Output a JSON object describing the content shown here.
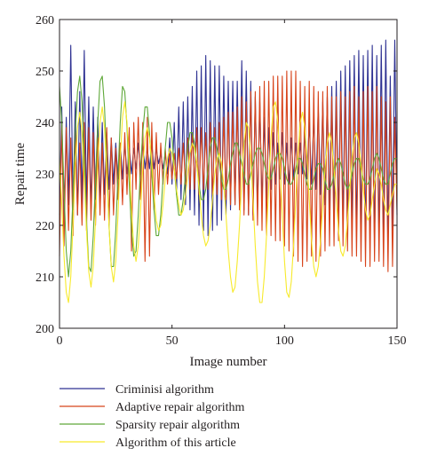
{
  "chart_data": {
    "type": "line",
    "title": "",
    "xlabel": "Image number",
    "ylabel": "Repair time",
    "xlim": [
      0,
      150
    ],
    "ylim": [
      200,
      260
    ],
    "xticks": [
      0,
      50,
      100,
      150
    ],
    "yticks": [
      200,
      210,
      220,
      230,
      240,
      250,
      260
    ],
    "grid": false,
    "legend_position": "bottom",
    "x": [
      0,
      1,
      2,
      3,
      4,
      5,
      6,
      7,
      8,
      9,
      10,
      11,
      12,
      13,
      14,
      15,
      16,
      17,
      18,
      19,
      20,
      21,
      22,
      23,
      24,
      25,
      26,
      27,
      28,
      29,
      30,
      31,
      32,
      33,
      34,
      35,
      36,
      37,
      38,
      39,
      40,
      41,
      42,
      43,
      44,
      45,
      46,
      47,
      48,
      49,
      50,
      51,
      52,
      53,
      54,
      55,
      56,
      57,
      58,
      59,
      60,
      61,
      62,
      63,
      64,
      65,
      66,
      67,
      68,
      69,
      70,
      71,
      72,
      73,
      74,
      75,
      76,
      77,
      78,
      79,
      80,
      81,
      82,
      83,
      84,
      85,
      86,
      87,
      88,
      89,
      90,
      91,
      92,
      93,
      94,
      95,
      96,
      97,
      98,
      99,
      100,
      101,
      102,
      103,
      104,
      105,
      106,
      107,
      108,
      109,
      110,
      111,
      112,
      113,
      114,
      115,
      116,
      117,
      118,
      119,
      120,
      121,
      122,
      123,
      124,
      125,
      126,
      127,
      128,
      129,
      130,
      131,
      132,
      133,
      134,
      135,
      136,
      137,
      138,
      139,
      140,
      141,
      142,
      143,
      144,
      145,
      146,
      147,
      148,
      149,
      150
    ],
    "series": [
      {
        "name": "Criminisi algorithm",
        "color": "#2e3192",
        "values": [
          222,
          243,
          219,
          241,
          224,
          255,
          223,
          244,
          222,
          246,
          224,
          254,
          224,
          245,
          223,
          243,
          225,
          241,
          224,
          240,
          226,
          238,
          227,
          237,
          228,
          236,
          229,
          236,
          229,
          236,
          230,
          235,
          230,
          235,
          231,
          236,
          230,
          236,
          231,
          235,
          231,
          236,
          231,
          235,
          232,
          234,
          231,
          234,
          230,
          237,
          228,
          240,
          226,
          243,
          225,
          244,
          224,
          245,
          223,
          247,
          222,
          250,
          220,
          251,
          219,
          253,
          218,
          252,
          219,
          251,
          220,
          251,
          221,
          249,
          222,
          248,
          223,
          248,
          224,
          248,
          224,
          252,
          223,
          250,
          222,
          248,
          222,
          245,
          223,
          244,
          224,
          241,
          225,
          239,
          227,
          238,
          228,
          236,
          229,
          238,
          228,
          236,
          228,
          237,
          229,
          236,
          230,
          236,
          230,
          238,
          229,
          240,
          228,
          241,
          227,
          243,
          226,
          244,
          224,
          245,
          223,
          247,
          222,
          248,
          221,
          250,
          220,
          251,
          219,
          252,
          219,
          253,
          218,
          254,
          218,
          253,
          217,
          254,
          217,
          255,
          216,
          253,
          217,
          255,
          216,
          256,
          218,
          249,
          219,
          256,
          222
        ]
      },
      {
        "name": "Adaptive repair algorithm",
        "color": "#d7431a",
        "values": [
          214,
          240,
          216,
          239,
          219,
          237,
          218,
          238,
          222,
          236,
          220,
          240,
          219,
          239,
          221,
          238,
          220,
          237,
          222,
          236,
          221,
          239,
          220,
          237,
          222,
          235,
          225,
          236,
          224,
          238,
          226,
          239,
          215,
          240,
          227,
          241,
          225,
          240,
          213,
          241,
          214,
          240,
          223,
          238,
          226,
          236,
          228,
          235,
          228,
          234,
          229,
          234,
          229,
          235,
          228,
          236,
          228,
          237,
          227,
          238,
          227,
          239,
          226,
          239,
          227,
          238,
          227,
          240,
          226,
          239,
          226,
          240,
          225,
          241,
          225,
          242,
          224,
          242,
          224,
          243,
          223,
          245,
          222,
          244,
          222,
          246,
          221,
          246,
          220,
          247,
          219,
          248,
          218,
          248,
          218,
          249,
          217,
          249,
          217,
          249,
          216,
          250,
          215,
          250,
          214,
          250,
          213,
          248,
          212,
          247,
          213,
          248,
          214,
          247,
          213,
          246,
          214,
          246,
          215,
          247,
          216,
          245,
          216,
          245,
          217,
          246,
          216,
          245,
          215,
          246,
          214,
          247,
          214,
          245,
          213,
          246,
          212,
          247,
          212,
          246,
          213,
          247,
          213,
          245,
          212,
          244,
          211,
          245,
          212,
          241,
          223
        ]
      },
      {
        "name": "Sparsity repair algorithm",
        "color": "#5fa839",
        "values": [
          247,
          240,
          227,
          215,
          210,
          215,
          226,
          238,
          246,
          249,
          244,
          233,
          221,
          212,
          211,
          218,
          229,
          240,
          248,
          249,
          243,
          232,
          220,
          212,
          212,
          219,
          230,
          240,
          247,
          246,
          239,
          228,
          219,
          214,
          215,
          222,
          231,
          238,
          243,
          243,
          238,
          230,
          223,
          218,
          218,
          222,
          229,
          235,
          240,
          240,
          237,
          231,
          226,
          222,
          222,
          225,
          230,
          235,
          238,
          238,
          236,
          232,
          228,
          225,
          225,
          227,
          231,
          235,
          237,
          237,
          235,
          232,
          229,
          227,
          227,
          229,
          232,
          234,
          236,
          236,
          234,
          232,
          230,
          228,
          228,
          230,
          232,
          234,
          235,
          235,
          234,
          232,
          230,
          229,
          229,
          231,
          233,
          234,
          234,
          233,
          231,
          229,
          228,
          228,
          229,
          231,
          233,
          233,
          232,
          230,
          228,
          227,
          227,
          229,
          231,
          232,
          232,
          231,
          229,
          227,
          227,
          228,
          230,
          232,
          233,
          232,
          230,
          228,
          227,
          228,
          230,
          232,
          233,
          233,
          231,
          229,
          228,
          228,
          229,
          231,
          233,
          234,
          233,
          231,
          229,
          228,
          228,
          230,
          232,
          233,
          233
        ]
      },
      {
        "name": "Algorithm of this article",
        "color": "#f7ea2b",
        "values": [
          233,
          224,
          214,
          207,
          205,
          210,
          220,
          231,
          239,
          242,
          238,
          229,
          219,
          211,
          208,
          212,
          221,
          232,
          240,
          243,
          239,
          230,
          220,
          212,
          209,
          213,
          222,
          233,
          241,
          244,
          240,
          232,
          223,
          216,
          213,
          216,
          223,
          231,
          237,
          239,
          237,
          232,
          226,
          221,
          219,
          220,
          224,
          229,
          233,
          235,
          234,
          231,
          227,
          224,
          222,
          223,
          226,
          230,
          234,
          236,
          235,
          232,
          227,
          222,
          218,
          216,
          217,
          220,
          225,
          230,
          233,
          234,
          232,
          228,
          222,
          215,
          210,
          207,
          208,
          213,
          220,
          229,
          236,
          240,
          239,
          233,
          225,
          216,
          209,
          205,
          205,
          210,
          218,
          228,
          237,
          243,
          244,
          240,
          232,
          222,
          213,
          207,
          206,
          209,
          216,
          225,
          234,
          240,
          242,
          239,
          233,
          225,
          217,
          212,
          210,
          212,
          217,
          224,
          231,
          236,
          238,
          236,
          231,
          225,
          219,
          215,
          214,
          216,
          221,
          227,
          233,
          237,
          238,
          236,
          232,
          227,
          223,
          221,
          222,
          225,
          228,
          231,
          230,
          228,
          225,
          223,
          222,
          224,
          226,
          228,
          228
        ]
      }
    ]
  }
}
